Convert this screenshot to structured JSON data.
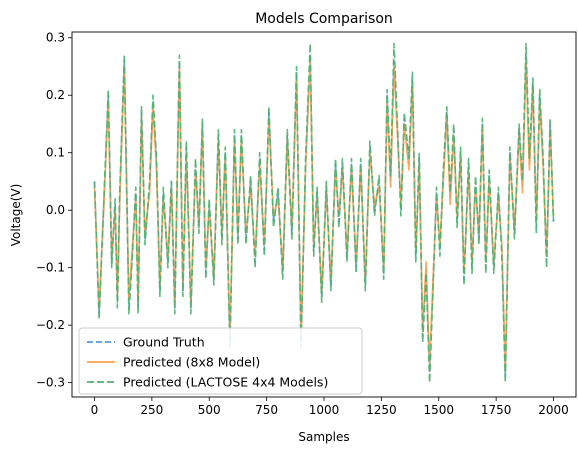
{
  "chart_data": {
    "type": "line",
    "title": "Models Comparison",
    "xlabel": "Samples",
    "ylabel": "Voltage(V)",
    "xlim": [
      -98,
      2098
    ],
    "ylim": [
      -0.325,
      0.31
    ],
    "xticks": [
      0,
      250,
      500,
      750,
      1000,
      1250,
      1500,
      1750,
      2000
    ],
    "yticks": [
      -0.3,
      -0.2,
      -0.1,
      0.0,
      0.1,
      0.2,
      0.3
    ],
    "ytick_labels": [
      "−0.3",
      "−0.2",
      "−0.1",
      "0.0",
      "0.1",
      "0.2",
      "0.3"
    ],
    "grid": false,
    "legend_position": "lower-left",
    "x": [
      0,
      20,
      40,
      60,
      75,
      90,
      100,
      110,
      130,
      150,
      165,
      180,
      190,
      205,
      220,
      240,
      255,
      270,
      285,
      300,
      320,
      335,
      350,
      370,
      385,
      400,
      420,
      440,
      455,
      470,
      485,
      500,
      520,
      540,
      555,
      570,
      590,
      610,
      625,
      640,
      660,
      680,
      700,
      720,
      740,
      760,
      780,
      800,
      820,
      840,
      860,
      880,
      900,
      920,
      940,
      955,
      970,
      990,
      1010,
      1030,
      1050,
      1065,
      1080,
      1100,
      1120,
      1140,
      1160,
      1180,
      1200,
      1220,
      1240,
      1260,
      1275,
      1290,
      1305,
      1320,
      1335,
      1350,
      1370,
      1385,
      1400,
      1415,
      1430,
      1445,
      1460,
      1475,
      1490,
      1505,
      1520,
      1535,
      1550,
      1565,
      1580,
      1595,
      1610,
      1630,
      1645,
      1660,
      1675,
      1690,
      1705,
      1720,
      1740,
      1760,
      1775,
      1790,
      1810,
      1830,
      1850,
      1865,
      1880,
      1895,
      1910,
      1925,
      1940,
      1955,
      1970,
      1985,
      2000
    ],
    "series": [
      {
        "name": "Ground Truth",
        "color": "#5b9bd5",
        "dash": "6,3",
        "values": [
          0.05,
          -0.18,
          0.01,
          0.2,
          -0.09,
          0.01,
          -0.16,
          0.02,
          0.26,
          -0.17,
          -0.07,
          0.03,
          -0.17,
          0.17,
          -0.05,
          0.04,
          0.19,
          0.08,
          -0.14,
          0.03,
          -0.09,
          0.05,
          -0.17,
          0.26,
          -0.14,
          0.11,
          -0.17,
          0.08,
          -0.03,
          0.15,
          -0.11,
          0.01,
          -0.12,
          0.13,
          -0.05,
          0.1,
          -0.23,
          0.13,
          -0.05,
          0.13,
          -0.05,
          0.05,
          -0.09,
          0.09,
          -0.07,
          0.17,
          -0.02,
          0.03,
          -0.11,
          0.13,
          -0.04,
          0.24,
          -0.23,
          0.08,
          0.27,
          -0.07,
          0.03,
          -0.15,
          0.04,
          -0.13,
          0.08,
          -0.02,
          0.08,
          -0.08,
          0.08,
          -0.1,
          0.08,
          -0.13,
          0.11,
          0.0,
          0.05,
          -0.11,
          0.2,
          0.05,
          0.26,
          0.14,
          0.0,
          0.16,
          0.08,
          0.23,
          -0.08,
          0.09,
          -0.22,
          -0.1,
          -0.28,
          -0.13,
          0.03,
          -0.07,
          0.06,
          0.17,
          0.02,
          0.14,
          -0.02,
          0.1,
          -0.12,
          0.08,
          -0.1,
          0.05,
          -0.05,
          0.15,
          -0.1,
          0.06,
          -0.1,
          0.03,
          -0.07,
          -0.29,
          0.1,
          -0.04,
          0.14,
          0.04,
          0.27,
          0.08,
          0.22,
          -0.03,
          0.2,
          0.08,
          -0.09,
          0.15,
          -0.02
        ]
      },
      {
        "name": "Predicted (8x8 Model)",
        "color": "#ffa04d",
        "dash": "",
        "values": [
          0.04,
          -0.17,
          0.0,
          0.19,
          -0.08,
          0.0,
          -0.15,
          0.01,
          0.25,
          -0.16,
          -0.06,
          0.02,
          -0.16,
          0.16,
          -0.04,
          0.03,
          0.18,
          0.07,
          -0.13,
          0.02,
          -0.08,
          0.04,
          -0.16,
          0.25,
          -0.13,
          0.1,
          -0.16,
          0.07,
          -0.02,
          0.14,
          -0.1,
          0.0,
          -0.11,
          0.12,
          -0.04,
          0.09,
          -0.22,
          0.12,
          -0.04,
          0.12,
          -0.04,
          0.04,
          -0.08,
          0.08,
          -0.06,
          0.16,
          -0.01,
          0.02,
          -0.1,
          0.12,
          -0.03,
          0.23,
          -0.22,
          0.07,
          0.26,
          -0.06,
          0.02,
          -0.14,
          0.03,
          -0.12,
          0.07,
          -0.01,
          0.07,
          -0.07,
          0.07,
          -0.09,
          0.07,
          -0.12,
          0.1,
          0.01,
          0.04,
          -0.1,
          0.19,
          0.04,
          0.25,
          0.13,
          0.01,
          0.15,
          0.07,
          0.22,
          -0.07,
          0.08,
          -0.21,
          -0.09,
          -0.27,
          -0.12,
          0.02,
          -0.06,
          0.05,
          0.16,
          0.01,
          0.13,
          -0.01,
          0.09,
          -0.11,
          0.07,
          -0.09,
          0.04,
          -0.04,
          0.14,
          -0.09,
          0.05,
          -0.09,
          0.02,
          -0.06,
          -0.28,
          0.09,
          -0.03,
          0.13,
          0.03,
          0.26,
          0.07,
          0.21,
          -0.02,
          0.19,
          0.07,
          -0.08,
          0.14,
          -0.01
        ]
      },
      {
        "name": "Predicted (LACTOSE 4x4 Models)",
        "color": "#4caf6e",
        "dash": "7,3",
        "values": [
          0.05,
          -0.19,
          0.01,
          0.21,
          -0.1,
          0.02,
          -0.17,
          0.03,
          0.27,
          -0.18,
          -0.08,
          0.04,
          -0.18,
          0.18,
          -0.06,
          0.05,
          0.2,
          0.09,
          -0.15,
          0.04,
          -0.1,
          0.05,
          -0.18,
          0.27,
          -0.15,
          0.12,
          -0.18,
          0.09,
          -0.04,
          0.16,
          -0.12,
          0.02,
          -0.13,
          0.14,
          -0.06,
          0.11,
          -0.24,
          0.14,
          -0.06,
          0.14,
          -0.06,
          0.06,
          -0.1,
          0.1,
          -0.08,
          0.18,
          -0.03,
          0.04,
          -0.12,
          0.14,
          -0.05,
          0.25,
          -0.24,
          0.09,
          0.29,
          -0.08,
          0.04,
          -0.16,
          0.05,
          -0.14,
          0.09,
          -0.03,
          0.09,
          -0.09,
          0.09,
          -0.11,
          0.09,
          -0.14,
          0.12,
          -0.01,
          0.06,
          -0.12,
          0.21,
          0.06,
          0.29,
          0.15,
          -0.01,
          0.17,
          0.09,
          0.24,
          -0.09,
          0.1,
          -0.23,
          -0.11,
          -0.3,
          -0.14,
          0.04,
          -0.08,
          0.07,
          0.18,
          0.03,
          0.15,
          -0.03,
          0.11,
          -0.13,
          0.09,
          -0.11,
          0.06,
          -0.06,
          0.16,
          -0.11,
          0.07,
          -0.11,
          0.04,
          -0.08,
          -0.3,
          0.11,
          -0.05,
          0.15,
          0.05,
          0.29,
          0.09,
          0.23,
          -0.04,
          0.21,
          0.09,
          -0.1,
          0.16,
          -0.02
        ]
      }
    ]
  }
}
